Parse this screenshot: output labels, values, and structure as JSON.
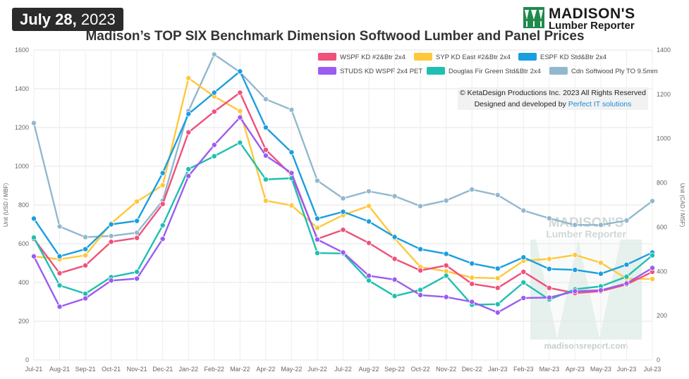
{
  "header": {
    "date_bold": "July 28,",
    "date_year": "2023",
    "logo_title": "MADISON'S",
    "logo_subtitle": "Lumber Reporter",
    "colors": {
      "badge_bg": "#2b2b2b",
      "logo_green": "#1f8a4c"
    }
  },
  "copyright": {
    "line1": "© KetaDesign Productions Inc. 2023 All Rights Reserved",
    "line2_prefix": "Designed and developed by ",
    "line2_link": "Perfect IT solutions"
  },
  "watermark": {
    "title": "MADISON'S",
    "subtitle": "Lumber Reporter",
    "url": "madisonsreport.com"
  },
  "chart_data": {
    "type": "line",
    "title": "Madison’s TOP SIX Benchmark Dimension Softwood Lumber and Panel Prices",
    "ylabel": "Unit (USD / MBF)",
    "y2label": "Unit (CAD / MSF)",
    "ylim": [
      0,
      1600
    ],
    "y2lim": [
      0,
      1400
    ],
    "yticks": [
      0,
      200,
      400,
      600,
      800,
      1000,
      1200,
      1400,
      1600
    ],
    "y2ticks": [
      0,
      200,
      400,
      600,
      800,
      1000,
      1200,
      1400
    ],
    "grid": true,
    "legend_position": "top-right",
    "categories": [
      "Jul-21",
      "Aug-21",
      "Sep-21",
      "Oct-21",
      "Nov-21",
      "Dec-21",
      "Jan-22",
      "Feb-22",
      "Mar-22",
      "Apr-22",
      "May-22",
      "Jun-22",
      "Jul-22",
      "Aug-22",
      "Sep-22",
      "Oct-22",
      "Nov-22",
      "Dec-22",
      "Jan-23",
      "Feb-23",
      "Mar-23",
      "Apr-23",
      "May-23",
      "Jun-23",
      "Jul-23"
    ],
    "series": [
      {
        "name": "WSPF KD #2&Btr 2x4",
        "color": "#f0507a",
        "axis": "left",
        "values": [
          625,
          448,
          488,
          610,
          630,
          805,
          1175,
          1282,
          1380,
          1085,
          955,
          625,
          672,
          604,
          522,
          462,
          488,
          393,
          372,
          455,
          372,
          345,
          355,
          390,
          455
        ]
      },
      {
        "name": "SYP KD East #2&Btr 2x4",
        "color": "#ffc83a",
        "axis": "left",
        "values": [
          535,
          520,
          540,
          705,
          818,
          902,
          1455,
          1360,
          1285,
          822,
          798,
          682,
          748,
          795,
          628,
          480,
          458,
          425,
          422,
          512,
          522,
          542,
          502,
          420,
          418
        ]
      },
      {
        "name": "ESPF KD Std&Btr 2x4",
        "color": "#1a9ee0",
        "axis": "left",
        "values": [
          730,
          535,
          572,
          700,
          718,
          965,
          1270,
          1380,
          1490,
          1200,
          1072,
          730,
          765,
          715,
          635,
          572,
          548,
          498,
          472,
          530,
          470,
          465,
          445,
          492,
          555
        ]
      },
      {
        "name": "STUDS KD WSPF 2x4 PET",
        "color": "#9b5cf0",
        "axis": "left",
        "values": [
          535,
          275,
          318,
          410,
          420,
          625,
          950,
          1110,
          1252,
          1055,
          965,
          622,
          555,
          435,
          415,
          335,
          325,
          300,
          245,
          320,
          322,
          355,
          360,
          395,
          475
        ]
      },
      {
        "name": "Douglas Fir Green Std&Btr 2x4",
        "color": "#1fbfb2",
        "axis": "left",
        "values": [
          632,
          385,
          342,
          428,
          455,
          695,
          985,
          1052,
          1122,
          932,
          938,
          552,
          550,
          410,
          330,
          362,
          435,
          285,
          288,
          400,
          312,
          365,
          380,
          430,
          540
        ]
      },
      {
        "name": "Cdn Softwood Ply TO 9.5mm",
        "color": "#92b8ce",
        "axis": "right",
        "values": [
          1070,
          603,
          555,
          560,
          575,
          720,
          1125,
          1380,
          1300,
          1178,
          1130,
          810,
          730,
          762,
          740,
          695,
          720,
          770,
          745,
          675,
          640,
          610,
          610,
          630,
          718
        ]
      }
    ]
  }
}
